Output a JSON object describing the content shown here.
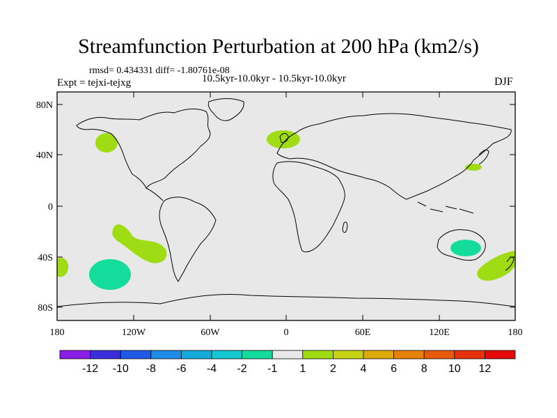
{
  "header": {
    "title": "Streamfunction Perturbation at 200 hPa (km2/s)",
    "stats": "rmsd= 0.434331 diff= -1.80761e-08",
    "experiment": "Expt = tejxi-tejxg",
    "period": "10.5kyr-10.0kyr - 10.5kyr-10.0kyr",
    "season": "DJF"
  },
  "axes": {
    "lat_ticks": [
      "80N",
      "40N",
      "0",
      "40S",
      "80S"
    ],
    "lon_ticks": [
      "180",
      "120W",
      "60W",
      "0",
      "60E",
      "120E",
      "180"
    ]
  },
  "colorbar": {
    "labels": [
      "-12",
      "-10",
      "-8",
      "-6",
      "-4",
      "-2",
      "-1",
      "1",
      "2",
      "4",
      "6",
      "8",
      "10",
      "12"
    ],
    "colors": [
      "#8a1ee6",
      "#3a2ddc",
      "#1e5ae6",
      "#1e8ce6",
      "#14aadc",
      "#14c8d2",
      "#14dc9b",
      "#e8e8e8",
      "#a0dc14",
      "#c8d214",
      "#dcaa0a",
      "#e6820a",
      "#e65a0a",
      "#e6320a",
      "#e60a0a"
    ]
  },
  "map": {
    "background_color": "#e8e8e8",
    "positive_color": "#a0dc14",
    "negative_color": "#14dc9b"
  }
}
